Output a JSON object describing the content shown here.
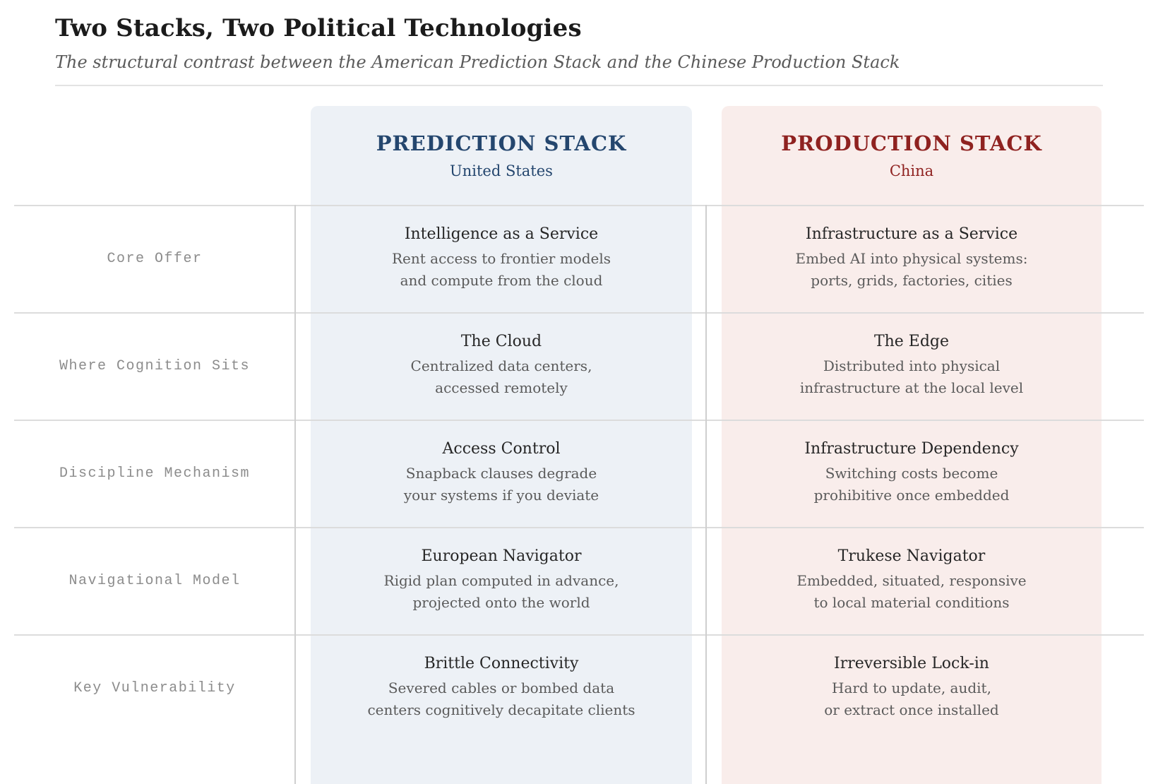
{
  "header": {
    "title": "Two Stacks, Two Political Technologies",
    "subtitle": "The structural contrast between the American Prediction Stack and the Chinese Production Stack"
  },
  "colors": {
    "prediction_accent": "#24466e",
    "prediction_panel_bg": "#edf1f6",
    "production_accent": "#8f2220",
    "production_panel_bg": "#f9edeb",
    "grid_line": "#dcdcdc",
    "row_label_gray": "#8c8c8c"
  },
  "chart_data": {
    "type": "table",
    "title": "Two Stacks, Two Political Technologies",
    "subtitle": "The structural contrast between the American Prediction Stack and the Chinese Production Stack",
    "columns": [
      {
        "title": "PREDICTION STACK",
        "region": "United States"
      },
      {
        "title": "PRODUCTION STACK",
        "region": "China"
      }
    ],
    "rows": [
      {
        "label": "Core Offer",
        "prediction": {
          "title": "Intelligence as a Service",
          "body": [
            "Rent access to frontier models",
            "and compute from the cloud"
          ]
        },
        "production": {
          "title": "Infrastructure as a Service",
          "body": [
            "Embed AI into physical systems:",
            "ports, grids, factories, cities"
          ]
        }
      },
      {
        "label": "Where Cognition Sits",
        "prediction": {
          "title": "The Cloud",
          "body": [
            "Centralized data centers,",
            "accessed remotely"
          ]
        },
        "production": {
          "title": "The Edge",
          "body": [
            "Distributed into physical",
            "infrastructure at the local level"
          ]
        }
      },
      {
        "label": "Discipline Mechanism",
        "prediction": {
          "title": "Access Control",
          "body": [
            "Snapback clauses degrade",
            "your systems if you deviate"
          ]
        },
        "production": {
          "title": "Infrastructure Dependency",
          "body": [
            "Switching costs become",
            "prohibitive once embedded"
          ]
        }
      },
      {
        "label": "Navigational Model",
        "prediction": {
          "title": "European Navigator",
          "body": [
            "Rigid plan computed in advance,",
            "projected onto the world"
          ]
        },
        "production": {
          "title": "Trukese Navigator",
          "body": [
            "Embedded, situated, responsive",
            "to local material conditions"
          ]
        }
      },
      {
        "label": "Key Vulnerability",
        "prediction": {
          "title": "Brittle Connectivity",
          "body": [
            "Severed cables or bombed data",
            "centers cognitively decapitate clients"
          ]
        },
        "production": {
          "title": "Irreversible Lock-in",
          "body": [
            "Hard to update, audit,",
            "or extract once installed"
          ]
        }
      }
    ]
  }
}
